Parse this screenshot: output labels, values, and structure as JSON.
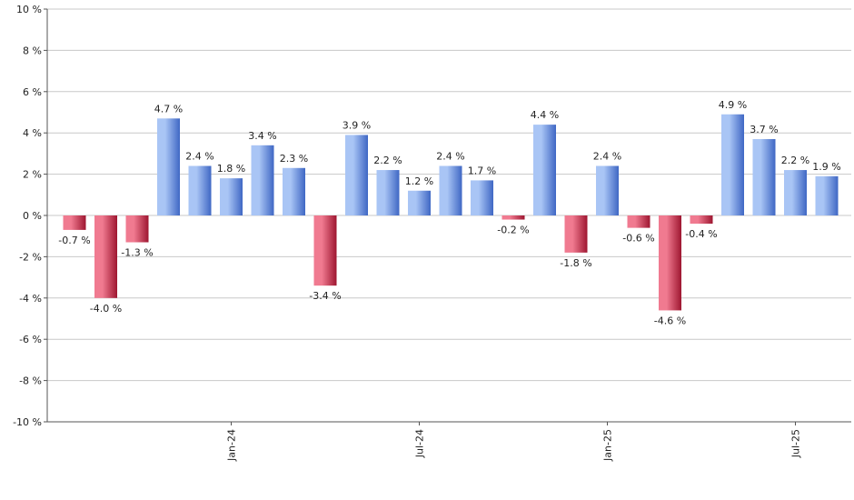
{
  "chart_data": {
    "type": "bar",
    "title": "",
    "xlabel": "",
    "ylabel": "",
    "ylim": [
      -10,
      10
    ],
    "y_tick_step": 2,
    "y_tick_suffix": " %",
    "grid": true,
    "legend": "none",
    "values": [
      -0.7,
      -4.0,
      -1.3,
      4.7,
      2.4,
      1.8,
      3.4,
      2.3,
      -3.4,
      3.9,
      2.2,
      1.2,
      2.4,
      1.7,
      -0.2,
      4.4,
      -1.8,
      2.4,
      -0.6,
      -4.6,
      -0.4,
      4.9,
      3.7,
      2.2,
      1.9
    ],
    "value_labels": [
      "-0.7 %",
      "-4.0 %",
      "-1.3 %",
      "4.7 %",
      "2.4 %",
      "1.8 %",
      "3.4 %",
      "2.3 %",
      "-3.4 %",
      "3.9 %",
      "2.2 %",
      "1.2 %",
      "2.4 %",
      "1.7 %",
      "-0.2 %",
      "4.4 %",
      "-1.8 %",
      "2.4 %",
      "-0.6 %",
      "-4.6 %",
      "-0.4 %",
      "4.9 %",
      "3.7 %",
      "2.2 %",
      "1.9 %"
    ],
    "x_tick_labels": [
      {
        "label": "Jan-24",
        "bar_index": 5
      },
      {
        "label": "Jul-24",
        "bar_index": 11
      },
      {
        "label": "Jan-25",
        "bar_index": 17
      },
      {
        "label": "Jul-25",
        "bar_index": 23
      }
    ],
    "y_tick_labels": [
      "10 %",
      "8 %",
      "6 %",
      "4 %",
      "2 %",
      "0 %",
      "-2 %",
      "-4 %",
      "-6 %",
      "-8 %",
      "-10 %"
    ],
    "colors": {
      "positive_light": "#a9c5f5",
      "positive_dark": "#3f67c4",
      "negative_light": "#f07a90",
      "negative_dark": "#9e1630",
      "grid": "#c8c8c8",
      "axis": "#555555"
    }
  }
}
